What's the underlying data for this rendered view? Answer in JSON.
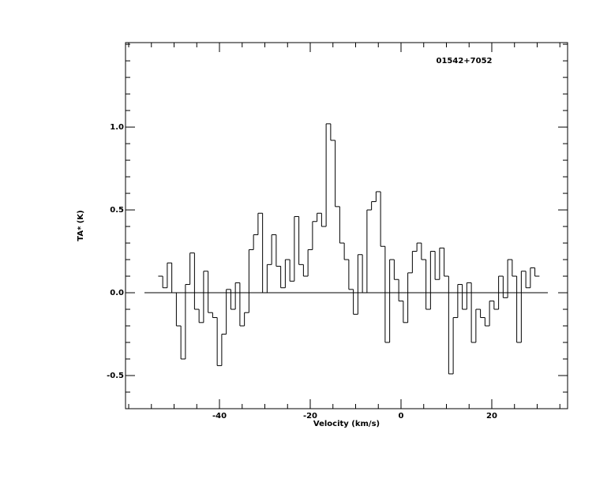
{
  "chart_data": {
    "type": "line",
    "step": true,
    "annotation": "01542+7052",
    "x_label": "Velocity (km/s)",
    "y_label": "TA* (K)",
    "color": "#000000",
    "xlim": [
      -60.7,
      36.7
    ],
    "ylim": [
      -0.7,
      1.51
    ],
    "xticks": [
      -40,
      -20,
      0,
      20
    ],
    "yticks": [
      {
        "value": -0.5,
        "label": "-0.5"
      },
      {
        "value": 0,
        "label": "0.0"
      },
      {
        "value": 0.5,
        "label": "0.5"
      },
      {
        "value": 1,
        "label": "1.0"
      }
    ],
    "xminorticks": [
      -60,
      -55,
      -50,
      -45,
      -35,
      -30,
      -25,
      -15,
      -10,
      -5,
      5,
      10,
      15,
      25,
      30,
      35
    ],
    "yminorticks": [
      -0.6,
      -0.4,
      -0.3,
      -0.2,
      -0.1,
      0.1,
      0.2,
      0.3,
      0.4,
      0.6,
      0.7,
      0.8,
      0.9,
      1.1,
      1.2,
      1.3,
      1.4,
      1.5
    ],
    "zero_line": true,
    "x": [
      -53,
      -52,
      -51,
      -50,
      -49,
      -48,
      -47,
      -46,
      -45,
      -44,
      -43,
      -42,
      -41,
      -40,
      -39,
      -38,
      -37,
      -36,
      -35,
      -34,
      -33,
      -32,
      -31,
      -30,
      -29,
      -28,
      -27,
      -26,
      -25,
      -24,
      -23,
      -22,
      -21,
      -20,
      -19,
      -18,
      -17,
      -16,
      -15,
      -14,
      -13,
      -12,
      -11,
      -10,
      -9,
      -8,
      -7,
      -6,
      -5,
      -4,
      -3,
      -2,
      -1,
      0,
      1,
      2,
      3,
      4,
      5,
      6,
      7,
      8,
      9,
      10,
      11,
      12,
      13,
      14,
      15,
      16,
      17,
      18,
      19,
      20,
      21,
      22,
      23,
      24,
      25,
      26,
      27,
      28,
      29,
      30
    ],
    "values": [
      0.1,
      0.03,
      0.18,
      0.0,
      -0.2,
      -0.4,
      0.05,
      0.24,
      -0.1,
      -0.18,
      0.13,
      -0.12,
      -0.15,
      -0.44,
      -0.25,
      0.02,
      -0.1,
      0.06,
      -0.2,
      -0.12,
      0.26,
      0.35,
      0.48,
      0.0,
      0.17,
      0.35,
      0.16,
      0.03,
      0.2,
      0.07,
      0.46,
      0.17,
      0.1,
      0.26,
      0.43,
      0.48,
      0.4,
      1.02,
      0.92,
      0.52,
      0.3,
      0.2,
      0.02,
      -0.13,
      0.23,
      0.0,
      0.5,
      0.55,
      0.61,
      0.28,
      -0.3,
      0.2,
      0.08,
      -0.05,
      -0.18,
      0.12,
      0.25,
      0.3,
      0.2,
      -0.1,
      0.25,
      0.08,
      0.27,
      0.1,
      -0.49,
      -0.15,
      0.05,
      -0.1,
      0.06,
      -0.3,
      -0.1,
      -0.15,
      -0.2,
      -0.05,
      -0.1,
      0.1,
      -0.03,
      0.2,
      0.1,
      -0.3,
      0.13,
      0.03,
      0.15,
      0.1
    ]
  }
}
